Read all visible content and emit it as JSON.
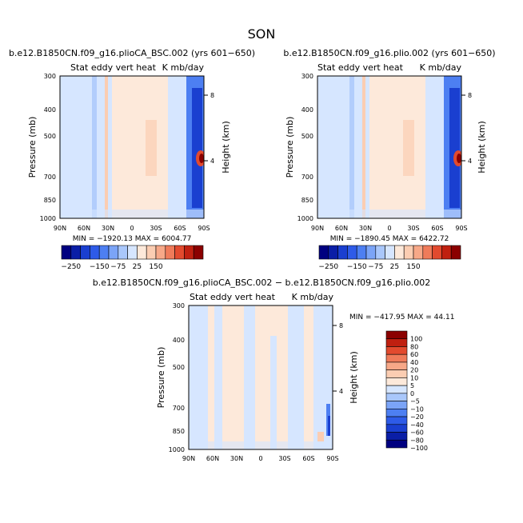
{
  "figure": {
    "title": "SON",
    "colors": {
      "ticks_top": [
        "#000080",
        "#0a1ea6",
        "#1a3fd0",
        "#2e5be8",
        "#4d7ff2",
        "#7ba4f7",
        "#a9c7fb",
        "#d6e6ff",
        "#fde9da",
        "#fbcdb2",
        "#f7a888",
        "#ef7b5a",
        "#e24a2e",
        "#c02010",
        "#8b0000"
      ],
      "diff_levels": [
        "#000080",
        "#0a1ea6",
        "#1a3fd0",
        "#2e5be8",
        "#4d7ff2",
        "#7ba4f7",
        "#a9c7fb",
        "#d6e6ff",
        "#fde9da",
        "#fbcdb2",
        "#f7a888",
        "#ef7b5a",
        "#e24a2e",
        "#c02010",
        "#8b0000"
      ]
    }
  },
  "chart_data": [
    {
      "type": "heatmap",
      "title": "b.e12.B1850CN.f09_g16.plioCA_BSC.002 (yrs 601−650)",
      "subtitle_left": "Stat eddy vert heat",
      "subtitle_right": "K mb/day",
      "ylabel": "Pressure (mb)",
      "ylabel_right": "Height (km)",
      "x_ticks": [
        "90N",
        "60N",
        "30N",
        "0",
        "30S",
        "60S",
        "90S"
      ],
      "y_ticks": [
        "300",
        "400",
        "500",
        "700",
        "850",
        "1000"
      ],
      "y_ticks_right": [
        "8",
        "4"
      ],
      "stats": "MIN = −1920.13   MAX = 6004.77",
      "min": -1920.13,
      "max": 6004.77
    },
    {
      "type": "heatmap",
      "title": "b.e12.B1850CN.f09_g16.plio.002 (yrs 601−650)",
      "subtitle_left": "Stat eddy vert heat",
      "subtitle_right": "K mb/day",
      "ylabel": "Pressure (mb)",
      "ylabel_right": "Height (km)",
      "x_ticks": [
        "90N",
        "60N",
        "30N",
        "0",
        "30S",
        "60S",
        "90S"
      ],
      "y_ticks": [
        "300",
        "400",
        "500",
        "700",
        "850",
        "1000"
      ],
      "y_ticks_right": [
        "8",
        "4"
      ],
      "stats": "MIN = −1890.45   MAX = 6422.72",
      "min": -1890.45,
      "max": 6422.72
    },
    {
      "type": "heatmap",
      "title": "b.e12.B1850CN.f09_g16.plioCA_BSC.002 − b.e12.B1850CN.f09_g16.plio.002",
      "subtitle_left": "Stat eddy vert heat",
      "subtitle_right": "K mb/day",
      "ylabel": "Pressure (mb)",
      "ylabel_right": "Height (km)",
      "x_ticks": [
        "90N",
        "60N",
        "30N",
        "0",
        "30S",
        "60S",
        "90S"
      ],
      "y_ticks": [
        "300",
        "400",
        "500",
        "700",
        "850",
        "1000"
      ],
      "y_ticks_right": [
        "8",
        "4"
      ],
      "stats": "MIN = −417.95   MAX =  44.11",
      "min": -417.95,
      "max": 44.11
    }
  ],
  "colorbar_top": {
    "labels": [
      "−250",
      "−150",
      "−75",
      "25",
      "150"
    ]
  },
  "colorbar_diff": {
    "labels": [
      "100",
      "80",
      "60",
      "40",
      "20",
      "10",
      "5",
      "0",
      "−5",
      "−10",
      "−20",
      "−40",
      "−60",
      "−80",
      "−100"
    ]
  }
}
